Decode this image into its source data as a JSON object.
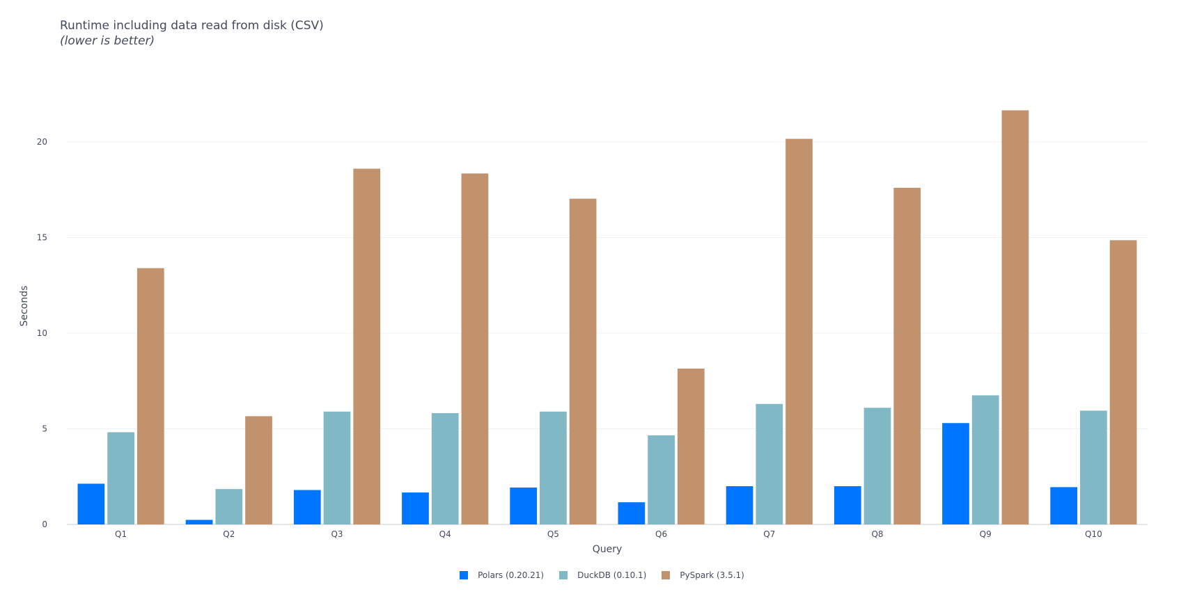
{
  "chart_data": {
    "type": "bar",
    "title": "Runtime including data read from disk (CSV)",
    "subtitle": "(lower is better)",
    "xlabel": "Query",
    "ylabel": "Seconds",
    "ylim": [
      0,
      22.8
    ],
    "yticks": [
      0,
      5,
      10,
      15,
      20
    ],
    "grid": true,
    "legend_position": "bottom-center",
    "categories": [
      "Q1",
      "Q2",
      "Q3",
      "Q4",
      "Q5",
      "Q6",
      "Q7",
      "Q8",
      "Q9",
      "Q10"
    ],
    "series": [
      {
        "name": "Polars (0.20.21)",
        "color": "#0075ff",
        "values": [
          2.13,
          0.24,
          1.8,
          1.67,
          1.93,
          1.16,
          2.0,
          2.0,
          5.3,
          1.95
        ]
      },
      {
        "name": "DuckDB (0.10.1)",
        "color": "#80b8c6",
        "values": [
          4.82,
          1.85,
          5.9,
          5.82,
          5.9,
          4.66,
          6.3,
          6.1,
          6.75,
          5.95
        ]
      },
      {
        "name": "PySpark (3.5.1)",
        "color": "#c2926d",
        "values": [
          13.4,
          5.66,
          18.6,
          18.35,
          17.03,
          8.15,
          20.16,
          17.6,
          21.65,
          14.86
        ]
      }
    ]
  }
}
